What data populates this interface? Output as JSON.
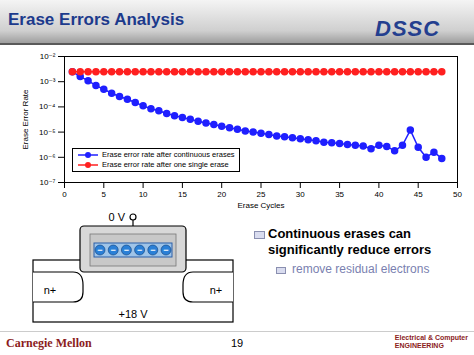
{
  "slide": {
    "title": "Erase Errors Analysis",
    "logo": "DSSC",
    "bullets": [
      {
        "text": "Continuous erases  can significantly reduce errors",
        "sub": [
          "remove residual electrons"
        ]
      }
    ],
    "diagram": {
      "gate_voltage": "0 V",
      "substrate_voltage": "+18 V",
      "source": "n+",
      "drain": "n+",
      "electrons": [
        "−",
        "−",
        "−",
        "−",
        "−",
        "−"
      ]
    },
    "footer": {
      "left": "Carnegie Mellon",
      "page": 19,
      "right": [
        "Electrical & Computer",
        "ENGINEERING"
      ]
    }
  },
  "chart_data": {
    "type": "line",
    "xlabel": "Erase Cycles",
    "ylabel": "Erase Error Rate",
    "x": [
      1,
      2,
      3,
      4,
      5,
      6,
      7,
      8,
      9,
      10,
      11,
      12,
      13,
      14,
      15,
      16,
      17,
      18,
      19,
      20,
      21,
      22,
      23,
      24,
      25,
      26,
      27,
      28,
      29,
      30,
      31,
      32,
      33,
      34,
      35,
      36,
      37,
      38,
      39,
      40,
      41,
      42,
      43,
      44,
      45,
      46,
      47,
      48
    ],
    "series": [
      {
        "name": "Erase error rate after continuous erases",
        "color": "#1f1fff",
        "marker": "circle",
        "values": [
          0.0025,
          0.0016,
          0.0011,
          0.0007,
          0.0005,
          0.00035,
          0.00026,
          0.0002,
          0.00015,
          0.00011,
          8.5e-05,
          7e-05,
          5.5e-05,
          4.5e-05,
          3.8e-05,
          3.2e-05,
          2.7e-05,
          2.3e-05,
          2e-05,
          1.7e-05,
          1.5e-05,
          1.3e-05,
          1.1e-05,
          1e-05,
          9e-06,
          8e-06,
          7e-06,
          6.5e-06,
          6e-06,
          5.5e-06,
          5e-06,
          4.5e-06,
          4e-06,
          3.8e-06,
          3.5e-06,
          3.2e-06,
          3e-06,
          2.8e-06,
          2.2e-06,
          3e-06,
          2.7e-06,
          1.8e-06,
          3e-06,
          1.2e-05,
          2.5e-06,
          1e-06,
          1.6e-06,
          9e-07
        ]
      },
      {
        "name": "Erase error rate after one single erase",
        "color": "#ff2020",
        "marker": "circle",
        "values": [
          0.0025,
          0.0025,
          0.0025,
          0.0025,
          0.0025,
          0.0025,
          0.0025,
          0.0025,
          0.0025,
          0.0025,
          0.0025,
          0.0025,
          0.0025,
          0.0025,
          0.0025,
          0.0025,
          0.0025,
          0.0025,
          0.0025,
          0.0025,
          0.0025,
          0.0025,
          0.0025,
          0.0025,
          0.0025,
          0.0025,
          0.0025,
          0.0025,
          0.0025,
          0.0025,
          0.0025,
          0.0025,
          0.0025,
          0.0025,
          0.0025,
          0.0025,
          0.0025,
          0.0025,
          0.0025,
          0.0025,
          0.0025,
          0.0025,
          0.0025,
          0.0025,
          0.0025,
          0.0025,
          0.0025,
          0.0025
        ]
      }
    ],
    "xlim": [
      0,
      50
    ],
    "xticks": [
      0,
      5,
      10,
      15,
      20,
      25,
      30,
      35,
      40,
      45,
      50
    ],
    "ylim": [
      1e-07,
      0.01
    ],
    "yticks": [
      {
        "value": 1e-07,
        "label": "10⁻⁷"
      },
      {
        "value": 1e-06,
        "label": "10⁻⁶"
      },
      {
        "value": 1e-05,
        "label": "10⁻⁵"
      },
      {
        "value": 0.0001,
        "label": "10⁻⁴"
      },
      {
        "value": 0.001,
        "label": "10⁻³"
      },
      {
        "value": 0.01,
        "label": "10⁻²"
      }
    ],
    "log": "y",
    "grid": false,
    "legend": "lower left"
  }
}
